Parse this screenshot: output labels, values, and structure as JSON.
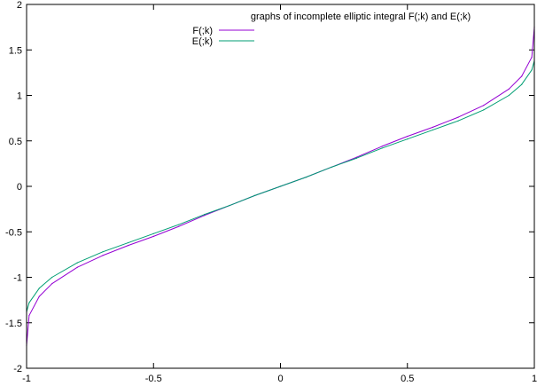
{
  "chart_data": {
    "type": "line",
    "title": "",
    "xlabel": "",
    "ylabel": "",
    "xlim": [
      -1,
      1
    ],
    "ylim": [
      -2,
      2
    ],
    "xticks": [
      -1,
      -0.5,
      0,
      0.5,
      1
    ],
    "xtick_labels": [
      "-1",
      "-0.5",
      "0",
      "0.5",
      "1"
    ],
    "yticks": [
      -2,
      -1.5,
      -1,
      -0.5,
      0,
      0.5,
      1,
      1.5,
      2
    ],
    "ytick_labels": [
      "-2",
      "-1.5",
      "-1",
      "-0.5",
      "0",
      "0.5",
      "1",
      "1.5",
      "2"
    ],
    "grid": false,
    "legend_position": "top-center",
    "key_title": "graphs of incomplete elliptic integral F(;k) and E(;k)",
    "x": [
      -1,
      -0.99,
      -0.95,
      -0.9,
      -0.8,
      -0.7,
      -0.6,
      -0.5,
      -0.4,
      -0.3,
      -0.2,
      -0.1,
      0,
      0.1,
      0.2,
      0.3,
      0.4,
      0.5,
      0.6,
      0.7,
      0.8,
      0.9,
      0.95,
      0.99,
      1
    ],
    "series": [
      {
        "name": "F(;k)",
        "color": "#9400d3",
        "values": [
          -1.75,
          -1.42,
          -1.21,
          -1.07,
          -0.89,
          -0.76,
          -0.65,
          -0.55,
          -0.44,
          -0.32,
          -0.21,
          -0.1,
          0,
          0.1,
          0.21,
          0.32,
          0.44,
          0.55,
          0.65,
          0.76,
          0.89,
          1.07,
          1.21,
          1.42,
          1.75
        ]
      },
      {
        "name": "E(;k)",
        "color": "#009e73",
        "values": [
          -1.38,
          -1.28,
          -1.12,
          -1.0,
          -0.84,
          -0.72,
          -0.62,
          -0.52,
          -0.42,
          -0.31,
          -0.21,
          -0.1,
          0,
          0.1,
          0.21,
          0.31,
          0.42,
          0.52,
          0.62,
          0.72,
          0.84,
          1.0,
          1.12,
          1.28,
          1.38
        ]
      }
    ]
  }
}
